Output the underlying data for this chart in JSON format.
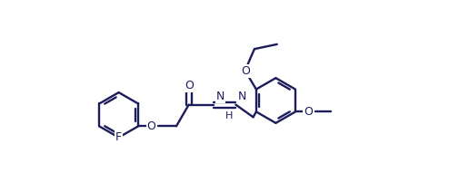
{
  "bg_color": "#ffffff",
  "line_color": "#1c1c5c",
  "lw": 1.7,
  "fs": 9.0,
  "fig_w": 4.94,
  "fig_h": 2.12,
  "dpi": 100,
  "xlim": [
    0.0,
    5.0
  ],
  "ylim": [
    0.0,
    3.2
  ]
}
